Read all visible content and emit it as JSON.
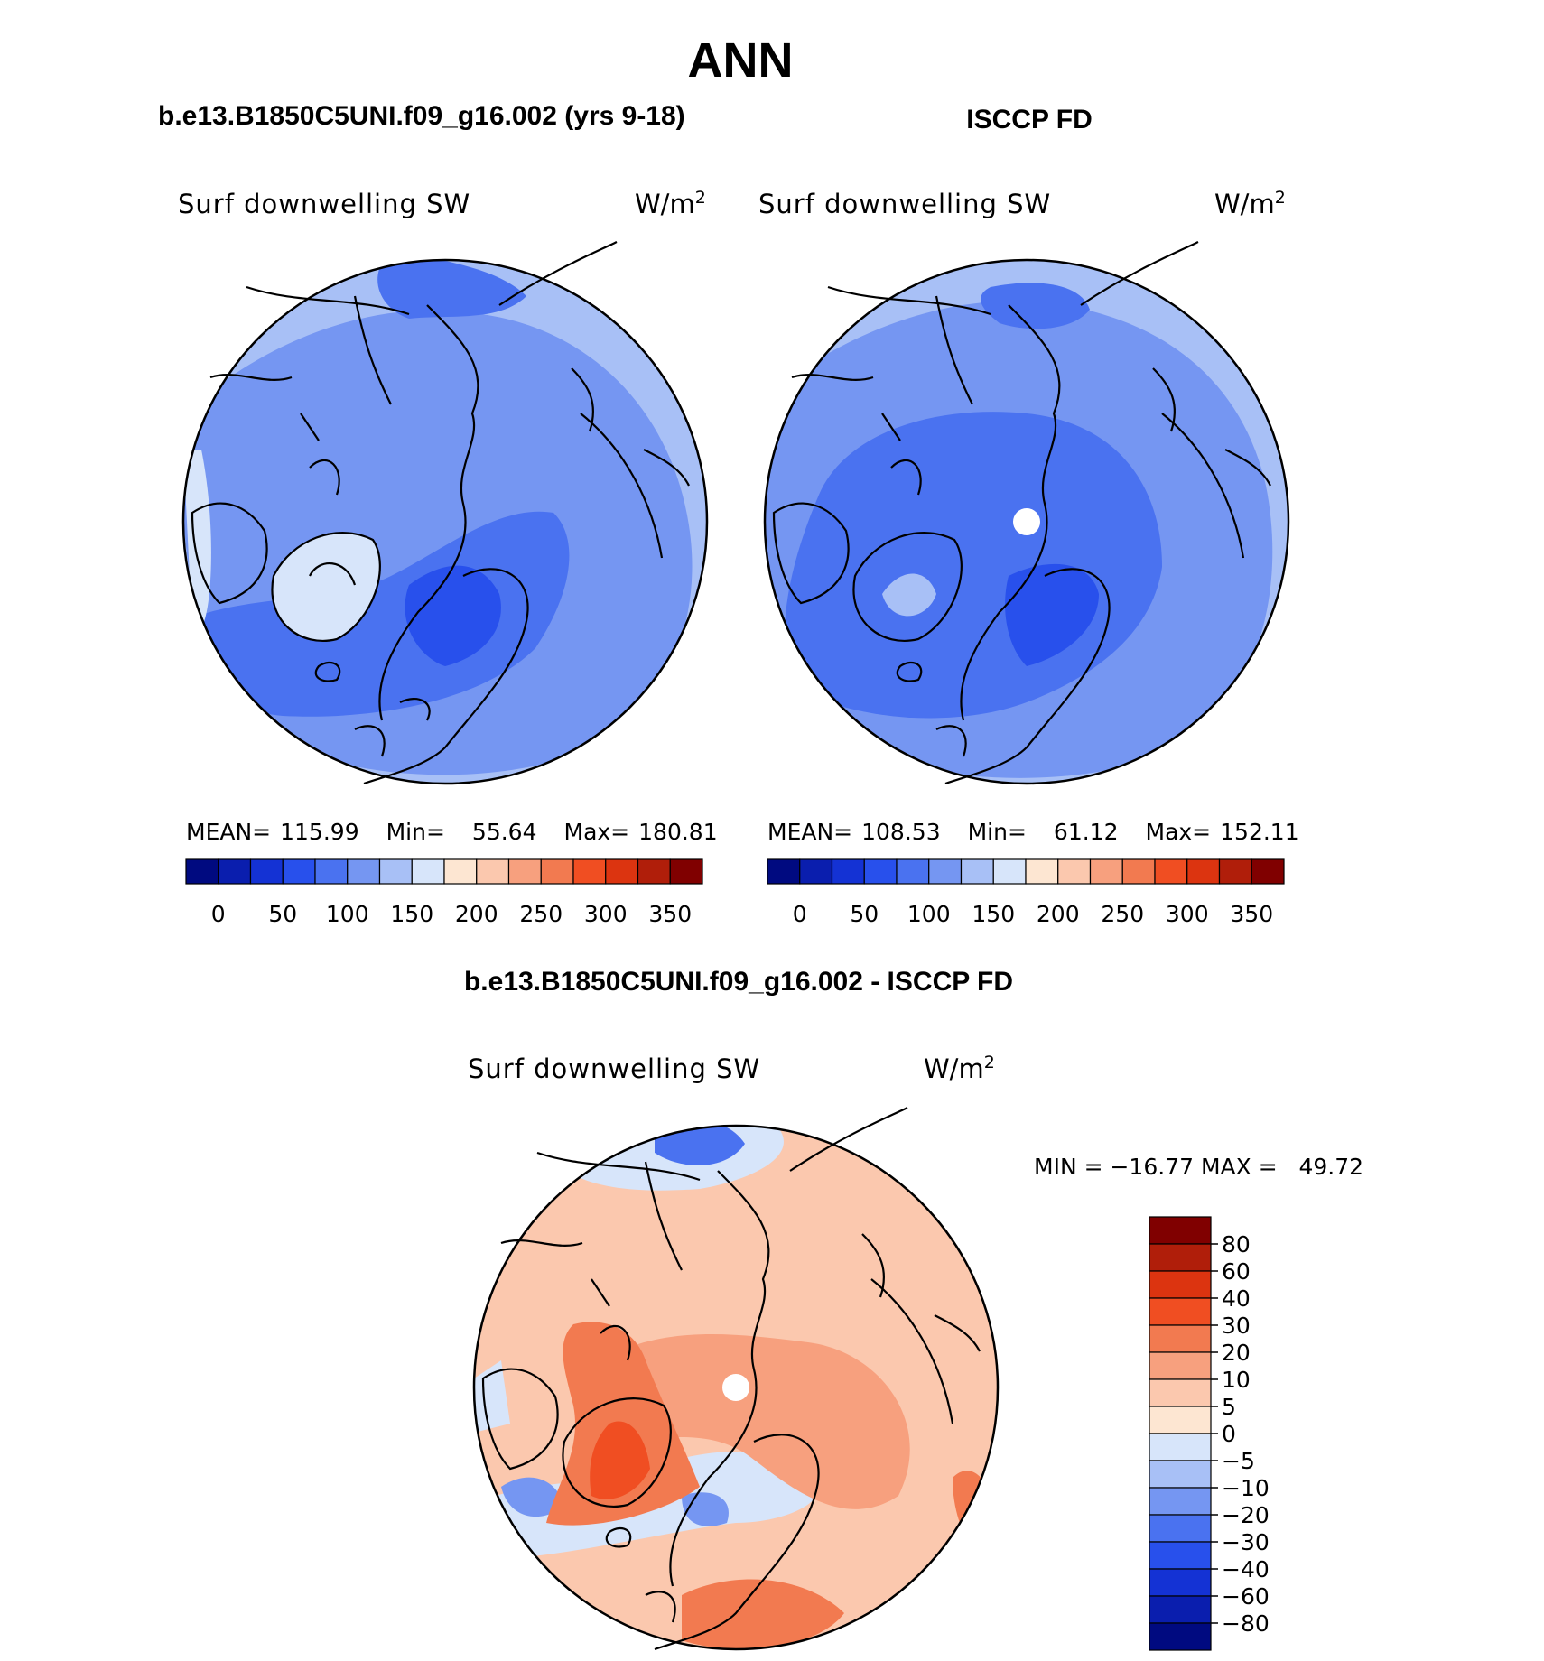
{
  "figure": {
    "title": "ANN",
    "left_title": "b.e13.B1850C5UNI.f09_g16.002 (yrs 9-18)",
    "right_title": "ISCCP FD",
    "diff_title": "b.e13.B1850C5UNI.f09_g16.002 - ISCCP FD"
  },
  "panels": {
    "model": {
      "variable": "Surf downwelling SW",
      "units_base": "W/m",
      "units_exp": "2",
      "stats": {
        "mean_label": "MEAN=",
        "mean": "115.99",
        "min_label": "Min=",
        "min": "55.64",
        "max_label": "Max=",
        "max": "180.81"
      }
    },
    "obs": {
      "variable": "Surf downwelling SW",
      "units_base": "W/m",
      "units_exp": "2",
      "stats": {
        "mean_label": "MEAN=",
        "mean": "108.53",
        "min_label": "Min=",
        "min": "61.12",
        "max_label": "Max=",
        "max": "152.11"
      }
    },
    "diff": {
      "variable": "Surf downwelling SW",
      "units_base": "W/m",
      "units_exp": "2",
      "stats_text": "MIN = −16.77 MAX =   49.72"
    }
  },
  "colorbars": {
    "abs": {
      "colors": [
        "#000a80",
        "#0a1eae",
        "#1432d4",
        "#2850ec",
        "#4a72f0",
        "#7596f2",
        "#a8c0f6",
        "#d7e5fa",
        "#fde6d2",
        "#fbc8ae",
        "#f7a07e",
        "#f27a50",
        "#f04e22",
        "#dc3410",
        "#b01e0a",
        "#800000"
      ],
      "tick_labels": [
        "0",
        "50",
        "100",
        "150",
        "200",
        "250",
        "300",
        "350"
      ]
    },
    "diff": {
      "colors": [
        "#000a80",
        "#0a1eae",
        "#1432d4",
        "#2850ec",
        "#4a72f0",
        "#7596f2",
        "#a8c0f6",
        "#d7e5fa",
        "#fde6d2",
        "#fbc8ae",
        "#f7a07e",
        "#f27a50",
        "#f04e22",
        "#dc3410",
        "#b01e0a",
        "#800000"
      ],
      "tick_labels": [
        "80",
        "60",
        "40",
        "30",
        "20",
        "10",
        "5",
        "0",
        "−5",
        "−10",
        "−20",
        "−30",
        "−40",
        "−60",
        "−80"
      ]
    }
  }
}
